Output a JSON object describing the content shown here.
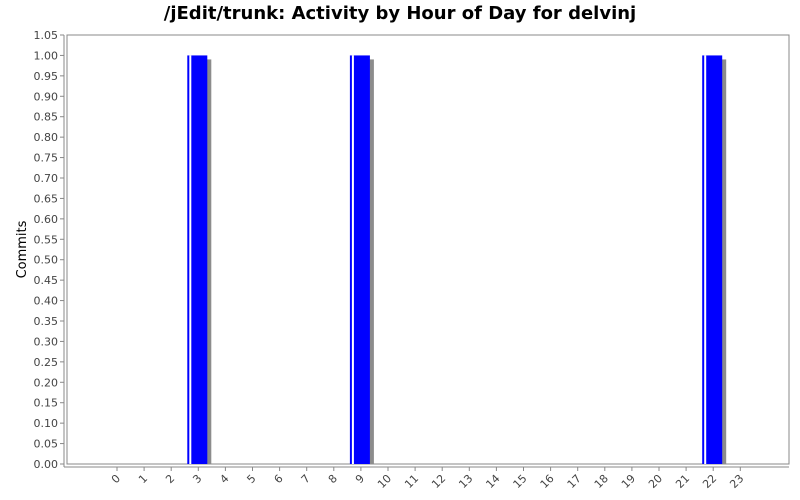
{
  "chart_data": {
    "type": "bar",
    "title": "/jEdit/trunk: Activity by Hour of Day for delvinj",
    "xlabel": "",
    "ylabel": "Commits",
    "categories": [
      "0",
      "1",
      "2",
      "3",
      "4",
      "5",
      "6",
      "7",
      "8",
      "9",
      "10",
      "11",
      "12",
      "13",
      "14",
      "15",
      "16",
      "17",
      "18",
      "19",
      "20",
      "21",
      "22",
      "23"
    ],
    "values": [
      0,
      0,
      0,
      1,
      0,
      0,
      0,
      0,
      0,
      1,
      0,
      0,
      0,
      0,
      0,
      0,
      0,
      0,
      0,
      0,
      0,
      0,
      1,
      0
    ],
    "ylim": [
      0,
      1.05
    ],
    "y_ticks": [
      "0.00",
      "0.05",
      "0.10",
      "0.15",
      "0.20",
      "0.25",
      "0.30",
      "0.35",
      "0.40",
      "0.45",
      "0.50",
      "0.55",
      "0.60",
      "0.65",
      "0.70",
      "0.75",
      "0.80",
      "0.85",
      "0.90",
      "0.95",
      "1.00",
      "1.05"
    ],
    "grid": false,
    "colors": {
      "bar": "#0000ff",
      "bar_shadow": "#8c8c8c",
      "axis": "#888888"
    }
  }
}
